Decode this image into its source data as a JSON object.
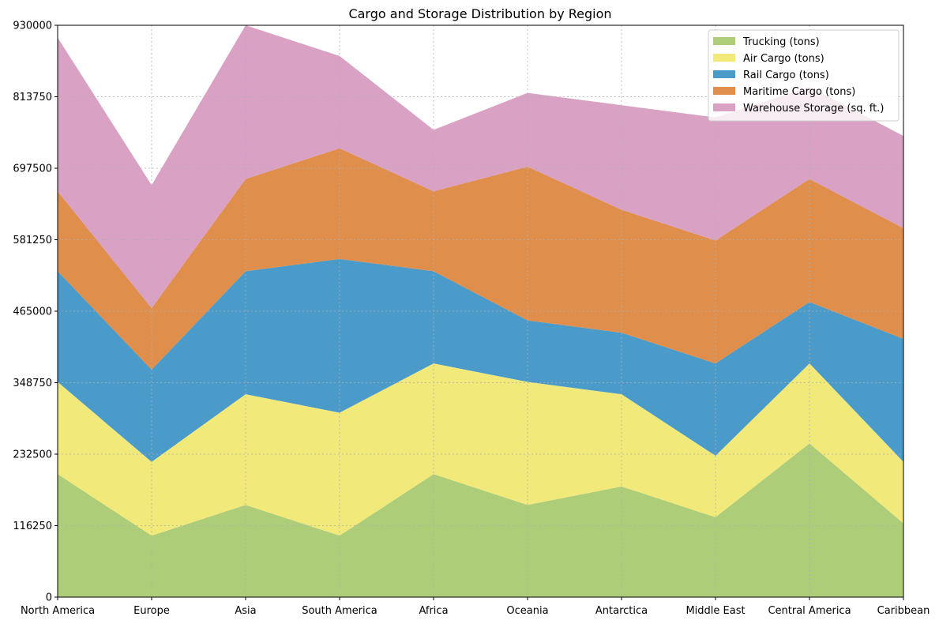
{
  "chart_data": {
    "type": "area",
    "title": "Cargo and Storage Distribution by Region",
    "xlabel": "",
    "ylabel": "",
    "ylim": [
      0,
      930000
    ],
    "yticks": [
      0,
      116250,
      232500,
      348750,
      465000,
      581250,
      697500,
      813750,
      930000
    ],
    "ytick_labels": [
      "0",
      "116250",
      "232500",
      "348750",
      "465000",
      "581250",
      "697500",
      "813750",
      "930000"
    ],
    "grid": true,
    "stacked": true,
    "legend_position": "top-right",
    "categories": [
      "North America",
      "Europe",
      "Asia",
      "South America",
      "Africa",
      "Oceania",
      "Antarctica",
      "Middle East",
      "Central America",
      "Caribbean"
    ],
    "series": [
      {
        "name": "Trucking (tons)",
        "color": "#aecd79",
        "values": [
          200000,
          100000,
          150000,
          100000,
          200000,
          150000,
          180000,
          130000,
          250000,
          120000
        ]
      },
      {
        "name": "Air Cargo (tons)",
        "color": "#f2e97b",
        "values": [
          150000,
          120000,
          180000,
          200000,
          180000,
          200000,
          150000,
          100000,
          130000,
          100000
        ]
      },
      {
        "name": "Rail Cargo (tons)",
        "color": "#4a9bc9",
        "values": [
          180000,
          150000,
          200000,
          250000,
          150000,
          100000,
          100000,
          150000,
          100000,
          200000
        ]
      },
      {
        "name": "Maritime Cargo (tons)",
        "color": "#e08e4b",
        "values": [
          130000,
          100000,
          150000,
          180000,
          130000,
          250000,
          200000,
          200000,
          200000,
          180000
        ]
      },
      {
        "name": "Warehouse Storage (sq. ft.)",
        "color": "#d9a1c3",
        "values": [
          250000,
          200000,
          250000,
          150000,
          100000,
          120000,
          170000,
          200000,
          150000,
          150000
        ]
      }
    ]
  }
}
